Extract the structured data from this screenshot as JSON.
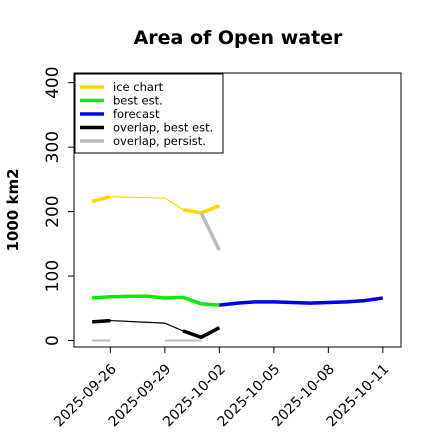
{
  "chart_data": {
    "type": "line",
    "title": "Area of Open water",
    "ylabel": "1000 km2",
    "xlabel": "",
    "ylim": [
      -10,
      415
    ],
    "xlim": [
      "2025-09-24",
      "2025-10-12"
    ],
    "yticks": [
      0,
      100,
      200,
      300,
      400
    ],
    "xticks": [
      {
        "date": "2025-09-26",
        "label": "2025-09-26",
        "color": "#000000"
      },
      {
        "date": "2025-09-29",
        "label": "2025-09-29",
        "color": "#000000"
      },
      {
        "date": "2025-10-02",
        "label": "2025-10-02",
        "color": "#228b22"
      },
      {
        "date": "2025-10-05",
        "label": "2025-10-05",
        "color": "#000000"
      },
      {
        "date": "2025-10-08",
        "label": "2025-10-08",
        "color": "#000000"
      },
      {
        "date": "2025-10-11",
        "label": "2025-10-11",
        "color": "#000000"
      }
    ],
    "legend_position": "top-left",
    "grid": false,
    "series": [
      {
        "name": "ice chart",
        "color": "#ffd700",
        "segments": [
          [
            [
              "2025-09-25",
              216
            ],
            [
              "2025-09-26",
              223
            ],
            [
              "2025-09-29",
              221
            ],
            [
              "2025-09-30",
              203
            ],
            [
              "2025-10-01",
              198
            ],
            [
              "2025-10-02",
              209
            ]
          ]
        ],
        "thick_segments": [
          [
            0,
            1
          ],
          [
            3,
            5
          ]
        ]
      },
      {
        "name": "best est.",
        "color": "#00ee00",
        "segments": [
          [
            [
              "2025-09-25",
              66
            ],
            [
              "2025-09-26",
              68
            ],
            [
              "2025-09-28",
              69
            ],
            [
              "2025-09-29",
              66
            ],
            [
              "2025-09-30",
              67
            ],
            [
              "2025-10-01",
              57
            ],
            [
              "2025-10-02",
              55
            ]
          ]
        ]
      },
      {
        "name": "forecast",
        "color": "#0000ee",
        "segments": [
          [
            [
              "2025-10-02",
              55
            ],
            [
              "2025-10-03",
              58
            ],
            [
              "2025-10-04",
              60
            ],
            [
              "2025-10-05",
              60
            ],
            [
              "2025-10-06",
              59
            ],
            [
              "2025-10-07",
              58
            ],
            [
              "2025-10-08",
              59
            ],
            [
              "2025-10-09",
              60
            ],
            [
              "2025-10-10",
              62
            ],
            [
              "2025-10-11",
              66
            ]
          ]
        ]
      },
      {
        "name": "overlap, best est.",
        "color": "#000000",
        "segments": [
          [
            [
              "2025-09-25",
              29
            ],
            [
              "2025-09-26",
              31
            ],
            [
              "2025-09-29",
              27
            ],
            [
              "2025-09-30",
              15
            ],
            [
              "2025-10-01",
              5
            ],
            [
              "2025-10-02",
              20
            ]
          ]
        ],
        "thick_segments": [
          [
            0,
            1
          ],
          [
            3,
            5
          ]
        ]
      },
      {
        "name": "overlap, persist.",
        "color": "#bbbbbb",
        "segments": [
          [
            [
              "2025-09-25",
              0
            ],
            [
              "2025-09-26",
              0
            ]
          ],
          [
            [
              "2025-09-29",
              0
            ],
            [
              "2025-10-01",
              0
            ]
          ],
          [
            [
              "2025-10-01",
              198
            ],
            [
              "2025-10-02",
              140
            ]
          ]
        ]
      }
    ]
  }
}
